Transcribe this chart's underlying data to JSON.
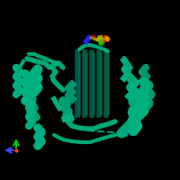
{
  "background_color": "#000000",
  "protein_color": "#00b388",
  "helix_color": "#00b080",
  "loop_color": "#00a878",
  "strand_color": "#008060",
  "ligand_colors": [
    "#cccc00",
    "#ff0000",
    "#0000ff",
    "#00cc00",
    "#ff8800"
  ],
  "axis_colors": {
    "x": "#4444ff",
    "y": "#00cc00",
    "origin": "#ff4400"
  },
  "figsize": [
    2.0,
    2.0
  ],
  "dpi": 100
}
